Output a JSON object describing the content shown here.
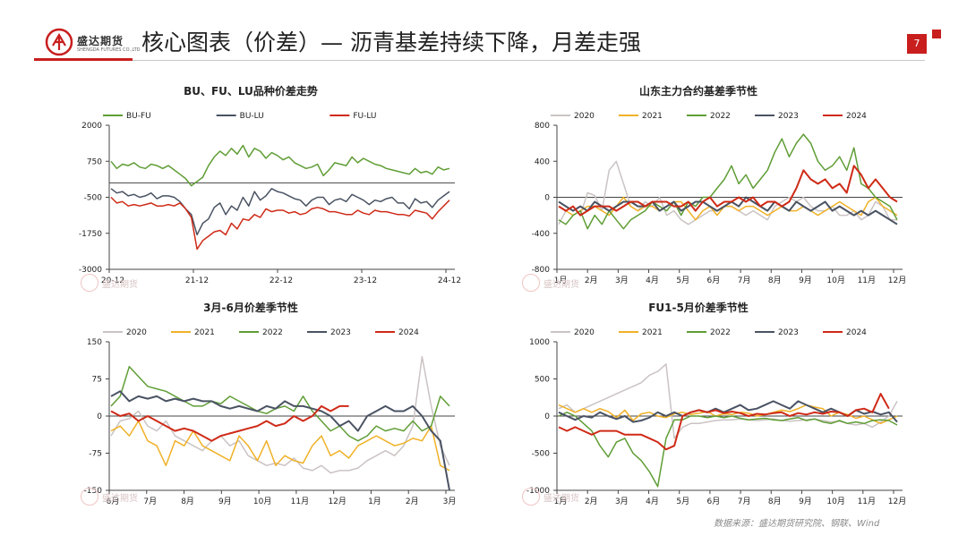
{
  "header": {
    "company": "盛达期货",
    "company_en": "SHENGDA FUTURES CO.,LTD",
    "title": "核心图表（价差）— 沥青基差持续下降，月差走强",
    "page_number": "7"
  },
  "colors": {
    "accent": "#c81e1e",
    "bu_fu": "#5f9d35",
    "bu_lu": "#4a5363",
    "fu_lu": "#cf2a17",
    "y2020": "#cbc3c3",
    "y2021": "#f0b127",
    "y2022": "#5f9d35",
    "y2023": "#4a5363",
    "y2024": "#cf2a17"
  },
  "watermark": "盛达期货",
  "source": "数据来源：盛达期货研究院、钢联、Wind",
  "chart_data": [
    {
      "type": "line",
      "title": "BU、FU、LU品种价差走势",
      "x_ticks": [
        "20-12",
        "21-12",
        "22-12",
        "23-12",
        "24-12"
      ],
      "yticks": [
        "2000",
        "750",
        "-500",
        "-1750",
        "-3000"
      ],
      "ylim": [
        -3000,
        2000
      ],
      "legend": "top",
      "zero_line": true,
      "series": [
        {
          "name": "BU-FU",
          "color": "#5f9d35",
          "values": [
            750,
            500,
            650,
            600,
            700,
            550,
            500,
            650,
            600,
            500,
            600,
            450,
            300,
            150,
            -100,
            50,
            200,
            600,
            900,
            1100,
            950,
            1200,
            1000,
            1300,
            900,
            1200,
            1100,
            850,
            1050,
            950,
            800,
            900,
            700,
            600,
            500,
            550,
            650,
            250,
            450,
            700,
            650,
            600,
            900,
            700,
            850,
            750,
            650,
            600,
            500,
            450,
            400,
            350,
            300,
            500,
            350,
            400,
            300,
            550,
            450,
            500
          ]
        },
        {
          "name": "BU-LU",
          "color": "#4a5363",
          "values": [
            -200,
            -350,
            -300,
            -450,
            -400,
            -500,
            -450,
            -350,
            -550,
            -450,
            -450,
            -500,
            -650,
            -900,
            -1100,
            -1800,
            -1400,
            -1250,
            -850,
            -700,
            -1100,
            -800,
            -950,
            -500,
            -800,
            -300,
            -600,
            -450,
            -200,
            -300,
            -350,
            -450,
            -550,
            -600,
            -800,
            -600,
            -500,
            -500,
            -750,
            -600,
            -550,
            -650,
            -400,
            -500,
            -600,
            -750,
            -600,
            -650,
            -550,
            -500,
            -700,
            -700,
            -900,
            -550,
            -700,
            -650,
            -850,
            -600,
            -450,
            -300
          ]
        },
        {
          "name": "FU-LU",
          "color": "#cf2a17",
          "values": [
            -500,
            -700,
            -650,
            -800,
            -750,
            -800,
            -750,
            -700,
            -800,
            -800,
            -750,
            -800,
            -700,
            -900,
            -1200,
            -2300,
            -2000,
            -1850,
            -1700,
            -1650,
            -1800,
            -1400,
            -1600,
            -1250,
            -1300,
            -1100,
            -1200,
            -900,
            -1000,
            -950,
            -950,
            -1050,
            -1000,
            -1100,
            -1050,
            -900,
            -850,
            -900,
            -1000,
            -1000,
            -1050,
            -1100,
            -1100,
            -950,
            -1050,
            -1100,
            -950,
            -1000,
            -1000,
            -1050,
            -1100,
            -1100,
            -1150,
            -950,
            -1000,
            -1050,
            -1250,
            -1000,
            -800,
            -600
          ]
        }
      ]
    },
    {
      "type": "line",
      "title": "山东主力合约基差季节性",
      "x_ticks": [
        "1月",
        "2月",
        "3月",
        "4月",
        "5月",
        "6月",
        "7月",
        "8月",
        "9月",
        "10月",
        "11月",
        "12月"
      ],
      "yticks": [
        "800",
        "400",
        "0",
        "-400",
        "-800"
      ],
      "ylim": [
        -800,
        800
      ],
      "legend": "top",
      "series": [
        {
          "name": "2020",
          "color": "#cbc3c3",
          "values": [
            -300,
            -150,
            -100,
            -200,
            50,
            20,
            -150,
            300,
            400,
            150,
            -100,
            -150,
            -50,
            -100,
            0,
            -200,
            -150,
            -250,
            -300,
            -250,
            -200,
            -150,
            -150,
            -100,
            -100,
            -150,
            -200,
            -150,
            -200,
            -250,
            -100,
            -50,
            0,
            -50,
            0,
            -100,
            -150,
            -150,
            -100,
            -200,
            -200,
            -150,
            -250,
            -200,
            -50,
            -100,
            -250,
            -250
          ]
        },
        {
          "name": "2021",
          "color": "#f0b127",
          "values": [
            -100,
            -150,
            -200,
            -150,
            -100,
            -100,
            -150,
            -200,
            -100,
            0,
            -100,
            -150,
            -100,
            -100,
            -150,
            -100,
            -50,
            -50,
            -150,
            -250,
            -150,
            -100,
            -200,
            -100,
            -100,
            -150,
            -100,
            -100,
            -150,
            -200,
            -150,
            -100,
            -150,
            -150,
            -100,
            -150,
            -200,
            -150,
            -100,
            -50,
            -100,
            -150,
            -200,
            -50,
            0,
            -100,
            -150,
            -200
          ]
        },
        {
          "name": "2022",
          "color": "#5f9d35",
          "values": [
            -250,
            -300,
            -200,
            -150,
            -350,
            -200,
            -300,
            -150,
            -250,
            -350,
            -250,
            -200,
            -150,
            -50,
            -100,
            -150,
            -50,
            -200,
            -50,
            -100,
            0,
            0,
            100,
            200,
            350,
            150,
            250,
            100,
            200,
            300,
            500,
            650,
            450,
            600,
            700,
            600,
            400,
            300,
            350,
            450,
            300,
            550,
            150,
            100,
            0,
            -50,
            -100,
            -250
          ]
        },
        {
          "name": "2023",
          "color": "#4a5363",
          "values": [
            -50,
            -100,
            -150,
            -100,
            -150,
            -50,
            -100,
            -150,
            -100,
            -50,
            -50,
            -100,
            -100,
            -50,
            -150,
            -100,
            -50,
            -150,
            -100,
            -50,
            -50,
            -100,
            -150,
            -100,
            -50,
            -100,
            0,
            -50,
            -100,
            -150,
            -50,
            -100,
            -150,
            -50,
            -100,
            -150,
            -100,
            -50,
            -150,
            -100,
            -150,
            -200,
            -150,
            -200,
            -150,
            -200,
            -250,
            -300
          ]
        },
        {
          "name": "2024",
          "color": "#cf2a17",
          "values": [
            -100,
            -150,
            -100,
            -200,
            -150,
            -100,
            -100,
            -100,
            -150,
            -100,
            -50,
            -50,
            -100,
            -50,
            -50,
            -50,
            -100,
            -100,
            -50,
            -150,
            -50,
            0,
            -100,
            -50,
            -50,
            0,
            -50,
            0,
            -100,
            -50,
            -50,
            -100,
            -50,
            100,
            300,
            200,
            150,
            200,
            100,
            150,
            50,
            350,
            250,
            100,
            200,
            100,
            0,
            -50
          ]
        }
      ]
    },
    {
      "type": "line",
      "title": "3月-6月价差季节性",
      "x_ticks": [
        "6月",
        "7月",
        "8月",
        "9月",
        "10月",
        "11月",
        "12月",
        "1月",
        "2月",
        "3月"
      ],
      "yticks": [
        "150",
        "75",
        "0",
        "-75",
        "-150"
      ],
      "ylim": [
        -150,
        150
      ],
      "legend": "top",
      "series": [
        {
          "name": "2020",
          "color": "#cbc3c3",
          "values": [
            -40,
            -10,
            -5,
            10,
            -20,
            -30,
            -10,
            -40,
            -50,
            -60,
            -70,
            -50,
            -40,
            -60,
            -50,
            -80,
            -90,
            -100,
            -95,
            -100,
            -85,
            -105,
            -110,
            -100,
            -115,
            -110,
            -110,
            -105,
            -90,
            -80,
            -70,
            -80,
            -60,
            -20,
            120,
            20,
            -60,
            -100
          ]
        },
        {
          "name": "2021",
          "color": "#f0b127",
          "values": [
            -30,
            -20,
            -40,
            -10,
            -50,
            -60,
            -100,
            -50,
            -60,
            -30,
            -60,
            -70,
            -80,
            -90,
            -40,
            -60,
            -90,
            -50,
            -100,
            -80,
            -90,
            -95,
            -60,
            -40,
            -80,
            -70,
            -85,
            -60,
            -50,
            -40,
            -50,
            -60,
            -55,
            -45,
            -50,
            -20,
            -100,
            -110
          ]
        },
        {
          "name": "2022",
          "color": "#5f9d35",
          "values": [
            20,
            40,
            100,
            80,
            60,
            55,
            50,
            40,
            30,
            20,
            20,
            30,
            25,
            40,
            30,
            20,
            10,
            5,
            15,
            20,
            10,
            40,
            10,
            -10,
            -30,
            -20,
            -40,
            -50,
            -40,
            -20,
            -30,
            -25,
            -30,
            -10,
            -30,
            -20,
            40,
            20
          ]
        },
        {
          "name": "2023",
          "color": "#4a5363",
          "values": [
            40,
            50,
            30,
            40,
            35,
            40,
            30,
            35,
            30,
            35,
            30,
            30,
            20,
            15,
            20,
            15,
            10,
            20,
            15,
            30,
            20,
            20,
            15,
            10,
            0,
            -20,
            -10,
            -30,
            0,
            10,
            20,
            10,
            10,
            20,
            0,
            -30,
            -50,
            -150
          ]
        },
        {
          "name": "2024",
          "color": "#cf2a17",
          "values": [
            10,
            0,
            5,
            -10,
            0,
            -10,
            -20,
            -30,
            -25,
            -30,
            -40,
            -50,
            -40,
            -35,
            -30,
            -25,
            -20,
            -10,
            -20,
            -15,
            0,
            -10,
            0,
            20,
            10,
            20,
            20
          ]
        }
      ]
    },
    {
      "type": "line",
      "title": "FU1-5月价差季节性",
      "x_ticks": [
        "1月",
        "2月",
        "3月",
        "4月",
        "5月",
        "6月",
        "7月",
        "8月",
        "9月",
        "10月",
        "11月",
        "12月"
      ],
      "yticks": [
        "1000",
        "500",
        "0",
        "-500",
        "-1000"
      ],
      "ylim": [
        -1000,
        1000
      ],
      "legend": "top",
      "series": [
        {
          "name": "2020",
          "color": "#cbc3c3",
          "values": [
            100,
            150,
            50,
            100,
            150,
            200,
            250,
            300,
            350,
            400,
            450,
            550,
            600,
            700,
            -300,
            -150,
            -100,
            -100,
            -80,
            -60,
            -50,
            -50,
            -40,
            -50,
            -60,
            -50,
            -40,
            -60,
            -70,
            -60,
            -50,
            -40,
            -60,
            -80,
            -70,
            -100,
            -120,
            -100,
            -150,
            -80,
            0,
            200
          ]
        },
        {
          "name": "2021",
          "color": "#f0b127",
          "values": [
            150,
            100,
            50,
            100,
            50,
            100,
            60,
            -20,
            80,
            -60,
            30,
            50,
            0,
            -20,
            30,
            50,
            20,
            40,
            60,
            0,
            30,
            20,
            50,
            40,
            0,
            20,
            50,
            80,
            60,
            100,
            150,
            120,
            100,
            0,
            50,
            20,
            -30,
            0,
            -50,
            -100,
            -50,
            0
          ]
        },
        {
          "name": "2022",
          "color": "#5f9d35",
          "values": [
            0,
            50,
            0,
            -100,
            -200,
            -400,
            -550,
            -350,
            -300,
            -500,
            -600,
            -750,
            -950,
            -300,
            -50,
            -50,
            0,
            0,
            -20,
            0,
            -20,
            0,
            -30,
            -50,
            -40,
            -30,
            -50,
            -60,
            -40,
            -20,
            -60,
            -40,
            -80,
            -100,
            -60,
            -100,
            -80,
            -100,
            -60,
            -50,
            -60,
            -120
          ]
        },
        {
          "name": "2023",
          "color": "#4a5363",
          "values": [
            50,
            0,
            -50,
            0,
            -20,
            50,
            0,
            -40,
            0,
            -80,
            -60,
            -20,
            50,
            0,
            50,
            0,
            50,
            80,
            50,
            100,
            50,
            100,
            150,
            80,
            100,
            150,
            200,
            150,
            100,
            200,
            150,
            100,
            50,
            100,
            50,
            0,
            80,
            30,
            60,
            20,
            50,
            -80
          ]
        },
        {
          "name": "2024",
          "color": "#cf2a17",
          "values": [
            -150,
            -200,
            -150,
            -200,
            -250,
            -200,
            -200,
            -200,
            -250,
            -250,
            -250,
            -300,
            -350,
            -450,
            -400,
            0,
            50,
            80,
            50,
            80,
            40,
            60,
            40,
            0,
            30,
            20,
            40,
            50,
            0,
            40,
            20,
            50,
            30,
            60,
            50,
            0,
            80,
            100,
            50,
            300,
            100
          ]
        }
      ]
    }
  ]
}
